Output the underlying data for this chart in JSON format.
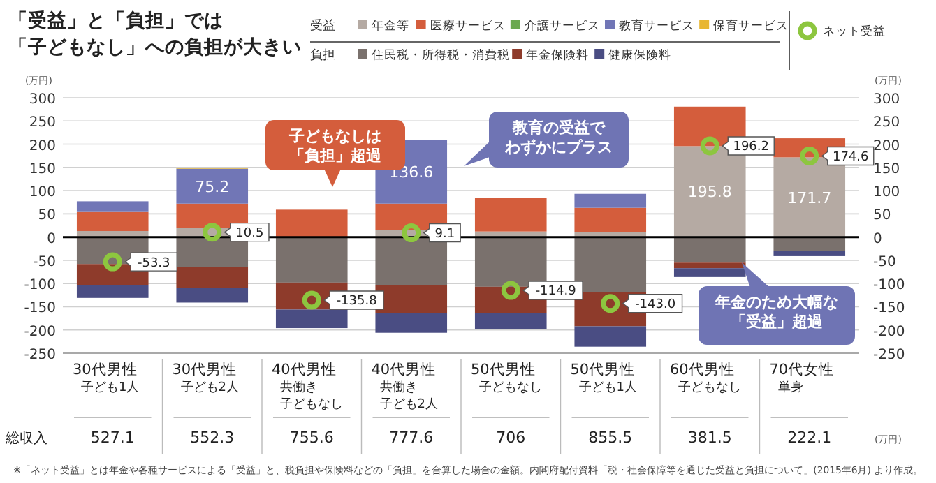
{
  "chart_data": {
    "type": "bar",
    "stacked": true,
    "title": "「受益」と「負担」では「子どもなし」への負担が大きい",
    "ylabel": "(万円)",
    "y2label": "(万円)",
    "categories": [
      "30代男性子ども1人",
      "30代男性子ども2人",
      "40代男性共働き子どもなし",
      "40代男性共働き子ども2人",
      "50代男性子どもなし",
      "50代男性子ども1人",
      "60代男性子どもなし",
      "70代女性単身"
    ],
    "series": [
      {
        "name": "年金等",
        "color": "#b5aaa3",
        "values": [
          13,
          20,
          0,
          15,
          12,
          10,
          195.8,
          171.7
        ],
        "value_labels": [
          null,
          null,
          null,
          null,
          null,
          null,
          "195.8",
          "171.7"
        ]
      },
      {
        "name": "医療サービス",
        "color": "#d45d3c",
        "values": [
          41,
          52,
          59,
          57,
          72,
          53,
          85,
          41
        ]
      },
      {
        "name": "介護サービス",
        "color": "#6aa84f",
        "values": [
          0,
          0,
          0,
          0,
          0,
          0,
          0,
          0
        ]
      },
      {
        "name": "教育サービス",
        "color": "#7176b6",
        "values": [
          23,
          75.2,
          0,
          136.6,
          0,
          30,
          0,
          0
        ],
        "value_labels": [
          null,
          "75.2",
          null,
          "136.6",
          null,
          null,
          null,
          null
        ]
      },
      {
        "name": "保育サービス",
        "color": "#e8b630",
        "values": [
          0,
          2,
          0,
          0,
          0,
          0,
          0,
          0
        ]
      },
      {
        "name": "住民税・所得税・消費税",
        "color": "#7a716d",
        "values": [
          -58,
          -65,
          -98,
          -103,
          -107,
          -119,
          -55,
          -30
        ]
      },
      {
        "name": "年金保険料",
        "color": "#8e3b2b",
        "values": [
          -45,
          -44,
          -58,
          -61,
          -56,
          -73,
          -12,
          0
        ]
      },
      {
        "name": "健康保険料",
        "color": "#4a4d83",
        "values": [
          -28,
          -32,
          -40,
          -42,
          -35,
          -44,
          -19,
          -11
        ]
      },
      {
        "name": "ネット受益",
        "type": "scatter",
        "color": "#8dc63f",
        "x": [
          "30代男性子ども1人",
          "30代男性子ども2人",
          "40代男性共働き子どもなし",
          "40代男性共働き子ども2人",
          "50代男性子どもなし",
          "50代男性子ども1人",
          "60代男性子どもなし",
          "70代女性単身"
        ],
        "values": [
          -53.3,
          10.5,
          -135.8,
          9.1,
          -114.9,
          -143.0,
          196.2,
          174.6
        ],
        "value_labels": [
          "-53.3",
          "10.5",
          "-135.8",
          "9.1",
          "-114.9",
          "-143.0",
          "196.2",
          "174.6"
        ]
      }
    ],
    "ylim": [
      -250,
      300
    ],
    "yticks": [
      -250,
      -200,
      -150,
      -100,
      -50,
      0,
      50,
      100,
      150,
      200,
      250,
      300
    ],
    "y2lim": [
      -250,
      300
    ],
    "y2ticks": [
      -250,
      -200,
      -150,
      -100,
      -50,
      0,
      50,
      100,
      150,
      200,
      250,
      300
    ],
    "grid": "y",
    "legend": "top",
    "marker": "circle",
    "annotations": [
      "受益",
      "負担",
      "総収入",
      "527.1",
      "552.3",
      "755.6",
      "777.6",
      "706",
      "855.5",
      "381.5",
      "222.1",
      "(万円)",
      "※「ネット受益」とは年金や各種サービスによる「受益」と、税負担や保険料などの「負担」を合算した場合の金額。内閣府配付資料「税・社会保障等を通じた受益と負担について」(2015年6月) より作成。",
      "子どもなしは「負担」超過",
      "教育の受益でわずかにプラス",
      "年金のため大幅な「受益」超過"
    ]
  }
}
